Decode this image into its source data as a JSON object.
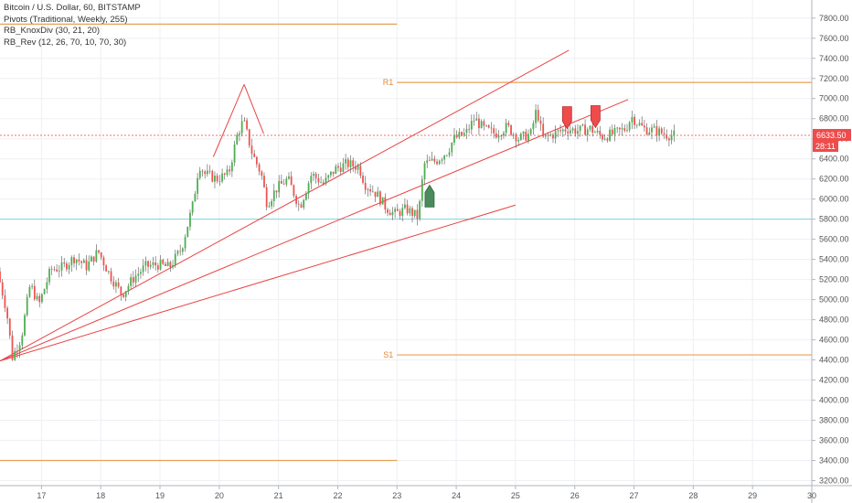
{
  "legend": {
    "title": "Bitcoin / U.S. Dollar, 60, BITSTAMP",
    "pivots": "Pivots (Traditional, Weekly, 255)",
    "knoxdiv": "RB_KnoxDiv (30, 21, 20)",
    "rev": "RB_Rev (12, 26, 70, 10, 70, 30)"
  },
  "price_badge": {
    "price": "6633.50",
    "countdown": "28:11",
    "color": "#ef4b4b"
  },
  "colors": {
    "up": "#4caf50",
    "down": "#ef5350",
    "pivot": "#e8a054",
    "trend": "#e84444",
    "support": "#7fd3dd",
    "grid": "#eef0f3",
    "bull_marker": "#4a8a5c",
    "bear_marker": "#ef4b4b"
  },
  "chart_data": {
    "type": "candlestick",
    "x_ticks": [
      "17",
      "18",
      "19",
      "20",
      "21",
      "22",
      "23",
      "24",
      "25",
      "26",
      "27",
      "28",
      "29",
      "30"
    ],
    "x_range": [
      16.3,
      30.0
    ],
    "y_ticks": [
      3200,
      3400,
      3600,
      3800,
      4000,
      4200,
      4400,
      4600,
      4800,
      5000,
      5200,
      5400,
      5600,
      5800,
      6000,
      6200,
      6400,
      6600,
      6800,
      7000,
      7200,
      7400,
      7600,
      7800
    ],
    "y_tick_labels": [
      "3200.00",
      "3400.00",
      "3600.00",
      "3800.00",
      "4000.00",
      "4200.00",
      "4400.00",
      "4600.00",
      "4800.00",
      "5000.00",
      "5200.00",
      "5400.00",
      "5600.00",
      "5800.00",
      "6000.00",
      "6200.00",
      "6400.00",
      "6600.00",
      "6800.00",
      "7000.00",
      "7200.00",
      "7400.00",
      "7600.00",
      "7800.00"
    ],
    "y_range": [
      3150,
      7980
    ],
    "price_path": [
      [
        16.3,
        5280
      ],
      [
        16.45,
        4900
      ],
      [
        16.55,
        4430
      ],
      [
        16.7,
        4620
      ],
      [
        16.85,
        5150
      ],
      [
        17.0,
        4950
      ],
      [
        17.2,
        5300
      ],
      [
        17.4,
        5320
      ],
      [
        17.6,
        5420
      ],
      [
        17.8,
        5330
      ],
      [
        18.0,
        5480
      ],
      [
        18.2,
        5240
      ],
      [
        18.4,
        5050
      ],
      [
        18.6,
        5220
      ],
      [
        18.8,
        5330
      ],
      [
        19.0,
        5350
      ],
      [
        19.2,
        5320
      ],
      [
        19.4,
        5500
      ],
      [
        19.6,
        5950
      ],
      [
        19.7,
        6350
      ],
      [
        19.8,
        6250
      ],
      [
        20.0,
        6200
      ],
      [
        20.2,
        6250
      ],
      [
        20.35,
        6650
      ],
      [
        20.45,
        6780
      ],
      [
        20.6,
        6450
      ],
      [
        20.75,
        6250
      ],
      [
        20.85,
        5950
      ],
      [
        21.0,
        6100
      ],
      [
        21.2,
        6200
      ],
      [
        21.4,
        5920
      ],
      [
        21.6,
        6250
      ],
      [
        21.8,
        6150
      ],
      [
        22.0,
        6300
      ],
      [
        22.2,
        6350
      ],
      [
        22.4,
        6320
      ],
      [
        22.5,
        6150
      ],
      [
        22.7,
        6050
      ],
      [
        22.85,
        5920
      ],
      [
        23.0,
        5850
      ],
      [
        23.2,
        5900
      ],
      [
        23.4,
        5820
      ],
      [
        23.5,
        6350
      ],
      [
        23.7,
        6380
      ],
      [
        23.9,
        6480
      ],
      [
        24.0,
        6600
      ],
      [
        24.2,
        6650
      ],
      [
        24.35,
        6800
      ],
      [
        24.5,
        6700
      ],
      [
        24.7,
        6650
      ],
      [
        24.9,
        6720
      ],
      [
        25.1,
        6600
      ],
      [
        25.3,
        6650
      ],
      [
        25.4,
        6900
      ],
      [
        25.5,
        6600
      ],
      [
        25.7,
        6650
      ],
      [
        25.9,
        6700
      ],
      [
        26.1,
        6680
      ],
      [
        26.3,
        6700
      ],
      [
        26.5,
        6620
      ],
      [
        26.7,
        6650
      ],
      [
        26.9,
        6700
      ],
      [
        27.0,
        6820
      ],
      [
        27.2,
        6700
      ],
      [
        27.4,
        6680
      ],
      [
        27.6,
        6640
      ],
      [
        27.7,
        6633.5
      ]
    ],
    "pivot_levels": [
      {
        "label": "",
        "value": 7740,
        "x_from": 16.3,
        "x_to": 23.0
      },
      {
        "label": "R1",
        "value": 7160,
        "x_from": 23.0,
        "x_to": 30.0
      },
      {
        "label": "S1",
        "value": 4450,
        "x_from": 23.0,
        "x_to": 30.0
      },
      {
        "label": "",
        "value": 3400,
        "x_from": 16.3,
        "x_to": 23.0
      }
    ],
    "support_level": 5800,
    "current_price": 6633.5,
    "trend_lines": [
      {
        "from": [
          16.3,
          4390
        ],
        "to": [
          25.9,
          7480
        ]
      },
      {
        "from": [
          16.3,
          4390
        ],
        "to": [
          26.9,
          6990
        ]
      },
      {
        "from": [
          16.3,
          4390
        ],
        "to": [
          25.0,
          5940
        ]
      },
      {
        "from": [
          19.9,
          6420
        ],
        "to": [
          20.42,
          7140
        ]
      },
      {
        "from": [
          20.42,
          7140
        ],
        "to": [
          20.75,
          6650
        ]
      }
    ],
    "markers": [
      {
        "type": "bull",
        "x": 23.55,
        "y": 6030
      },
      {
        "type": "bear",
        "x": 25.87,
        "y": 6810
      },
      {
        "type": "bear",
        "x": 26.35,
        "y": 6820
      }
    ]
  }
}
